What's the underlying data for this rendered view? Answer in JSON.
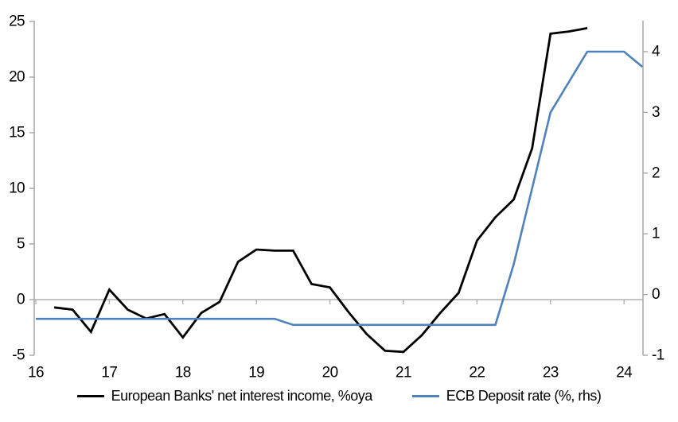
{
  "chart_data": {
    "type": "line",
    "title": "",
    "xlabel": "",
    "ylabel_left": "",
    "ylabel_right": "",
    "legend_position": "bottom",
    "grid": false,
    "zero_line": true,
    "axis_color": "#a6a6a6",
    "zero_line_color": "#b0b0b0",
    "text_color": "#000000",
    "x_axis": {
      "min": 16,
      "max": 24.26,
      "ticks": [
        "16",
        "17",
        "18",
        "19",
        "20",
        "21",
        "22",
        "23",
        "24"
      ],
      "tick_values": [
        16,
        17,
        18,
        19,
        20,
        21,
        22,
        23,
        24
      ]
    },
    "left_axis": {
      "min": -5,
      "max": 25,
      "ticks": [
        "25",
        "20",
        "15",
        "10",
        "5",
        "0",
        "-5"
      ],
      "tick_values": [
        25,
        20,
        15,
        10,
        5,
        0,
        -5
      ]
    },
    "right_axis": {
      "min": -1,
      "max": 4.5,
      "ticks": [
        "4",
        "3",
        "2",
        "1",
        "0",
        "-1"
      ],
      "tick_values": [
        4,
        3,
        2,
        1,
        0,
        -1
      ]
    },
    "series": [
      {
        "name": "European Banks' net interest income, %oya",
        "axis": "left",
        "color": "#000000",
        "width": 2.8,
        "x": [
          16.25,
          16.5,
          16.75,
          17,
          17.25,
          17.5,
          17.75,
          18,
          18.25,
          18.5,
          18.75,
          19,
          19.25,
          19.5,
          19.75,
          20,
          20.25,
          20.5,
          20.75,
          21,
          21.25,
          21.5,
          21.75,
          22,
          22.25,
          22.5,
          22.75,
          23,
          23.25,
          23.5
        ],
        "values": [
          -0.7,
          -0.9,
          -2.9,
          0.9,
          -0.9,
          -1.7,
          -1.3,
          -3.4,
          -1.2,
          -0.2,
          3.4,
          4.5,
          4.4,
          4.4,
          1.4,
          1.1,
          -1.1,
          -3.1,
          -4.6,
          -4.7,
          -3.2,
          -1.2,
          0.6,
          5.3,
          7.4,
          9.0,
          13.6,
          23.9,
          24.1,
          24.4
        ]
      },
      {
        "name": "ECB Deposit rate (%, rhs)",
        "axis": "right",
        "color": "#4f81bd",
        "width": 2.6,
        "x": [
          16,
          16.25,
          16.5,
          16.75,
          17,
          17.25,
          17.5,
          17.75,
          18,
          18.25,
          18.5,
          18.75,
          19,
          19.25,
          19.5,
          19.75,
          20,
          20.25,
          20.5,
          20.75,
          21,
          21.25,
          21.5,
          21.75,
          22,
          22.25,
          22.5,
          22.75,
          23,
          23.25,
          23.5,
          23.75,
          24,
          24.25
        ],
        "values": [
          -0.4,
          -0.4,
          -0.4,
          -0.4,
          -0.4,
          -0.4,
          -0.4,
          -0.4,
          -0.4,
          -0.4,
          -0.4,
          -0.4,
          -0.4,
          -0.4,
          -0.5,
          -0.5,
          -0.5,
          -0.5,
          -0.5,
          -0.5,
          -0.5,
          -0.5,
          -0.5,
          -0.5,
          -0.5,
          -0.5,
          0.5,
          1.75,
          3.0,
          3.5,
          4.0,
          4.0,
          4.0,
          3.75
        ]
      }
    ]
  }
}
